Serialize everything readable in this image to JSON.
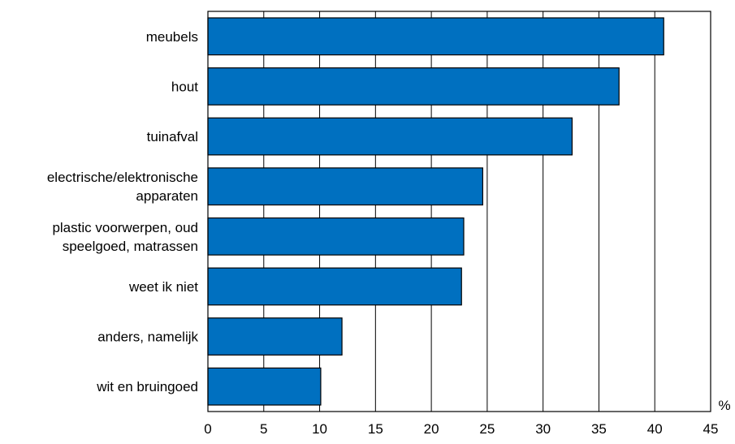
{
  "chart_data": {
    "type": "bar",
    "orientation": "horizontal",
    "categories": [
      [
        "meubels"
      ],
      [
        "hout"
      ],
      [
        "tuinafval"
      ],
      [
        "electrische/elektronische",
        "apparaten"
      ],
      [
        "plastic voorwerpen, oud",
        "speelgoed, matrassen"
      ],
      [
        "weet ik niet"
      ],
      [
        "anders, namelijk"
      ],
      [
        "wit en bruingoed"
      ]
    ],
    "values": [
      40.8,
      36.8,
      32.6,
      24.6,
      22.9,
      22.7,
      12.0,
      10.1
    ],
    "xlim": [
      0,
      45
    ],
    "xticks": [
      "0",
      "5",
      "10",
      "15",
      "20",
      "25",
      "30",
      "35",
      "40",
      "45"
    ],
    "xlabel": "%",
    "grid": true,
    "bar_color": "#0070C0"
  }
}
